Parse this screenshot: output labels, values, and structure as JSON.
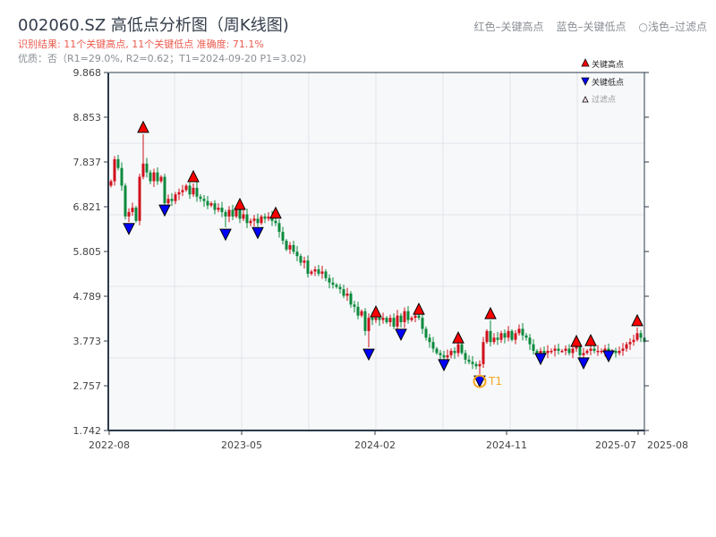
{
  "header": {
    "title": "002060.SZ 高低点分析图（周K线图)",
    "result_line": "识别结果: 11个关键高点, 11个关键低点   准确度: 71.1%",
    "quality_line": "优质：否（R1=29.0%, R2=0.62；T1=2024-09-20 P1=3.02)",
    "legend_red": "红色–关键高点",
    "legend_blue": "蓝色–关键低点",
    "legend_filtered": "○浅色–过滤点"
  },
  "colors": {
    "up": "#d0101c",
    "down": "#0b8a3c",
    "high_marker": "#ff0000",
    "low_marker": "#0000ff",
    "t1": "#f5a623",
    "grid": "#e1e4ea",
    "plot_bg": "#f7f8fa",
    "axis": "#2d3a4a"
  },
  "chart_data": {
    "type": "candlestick",
    "title": "002060.SZ 高低点分析图（周K线图)",
    "ylim": [
      1.742,
      9.868
    ],
    "y_ticks": [
      "1.742",
      "2.757",
      "3.773",
      "4.789",
      "5.805",
      "6.821",
      "7.837",
      "8.853",
      "9.868"
    ],
    "x_ticks": [
      {
        "label": "2022-08",
        "index": -0.5
      },
      {
        "label": "2023-05",
        "index": 36.5
      },
      {
        "label": "2024-02",
        "index": 73.75
      },
      {
        "label": "2024-11",
        "index": 110.5
      },
      {
        "label": "2025-07",
        "index": 147.25
      },
      {
        "label": "2025-08",
        "index": 149
      }
    ],
    "weekly_close": [
      7.4,
      7.9,
      7.7,
      7.3,
      6.6,
      6.7,
      6.8,
      6.5,
      7.5,
      7.8,
      7.6,
      7.4,
      7.6,
      7.4,
      7.5,
      6.9,
      7.0,
      6.95,
      7.1,
      7.15,
      7.2,
      7.3,
      7.1,
      7.25,
      7.05,
      7.0,
      6.95,
      6.85,
      6.9,
      6.75,
      6.8,
      6.7,
      6.6,
      6.75,
      6.6,
      6.8,
      6.55,
      6.65,
      6.45,
      6.5,
      6.55,
      6.45,
      6.6,
      6.55,
      6.6,
      6.5,
      6.45,
      6.25,
      6.05,
      5.85,
      5.95,
      5.8,
      5.7,
      5.55,
      5.6,
      5.3,
      5.35,
      5.4,
      5.3,
      5.35,
      5.2,
      5.1,
      5.05,
      5.0,
      4.95,
      4.8,
      4.85,
      4.6,
      4.55,
      4.35,
      4.45,
      4.0,
      4.3,
      4.25,
      4.3,
      4.25,
      4.3,
      4.2,
      4.3,
      4.1,
      4.35,
      4.2,
      4.45,
      4.25,
      4.3,
      4.35,
      4.3,
      4.05,
      3.85,
      3.75,
      3.6,
      3.5,
      3.45,
      3.4,
      3.45,
      3.55,
      3.5,
      3.7,
      3.5,
      3.35,
      3.3,
      3.25,
      3.2,
      3.25,
      3.75,
      4.0,
      3.75,
      3.85,
      3.8,
      3.95,
      3.85,
      4.0,
      3.8,
      3.95,
      4.05,
      3.9,
      3.85,
      3.7,
      3.55,
      3.5,
      3.55,
      3.5,
      3.55,
      3.55,
      3.6,
      3.55,
      3.55,
      3.6,
      3.5,
      3.6,
      3.65,
      3.45,
      3.5,
      3.55,
      3.6,
      3.55,
      3.55,
      3.55,
      3.6,
      3.55,
      3.55,
      3.5,
      3.55,
      3.6,
      3.7,
      3.75,
      3.8,
      3.95,
      3.85,
      3.75
    ],
    "key_highs": [
      {
        "index": 9,
        "value": 8.47
      },
      {
        "index": 23,
        "value": 7.35
      },
      {
        "index": 36,
        "value": 6.72
      },
      {
        "index": 46,
        "value": 6.52
      },
      {
        "index": 74,
        "value": 4.28
      },
      {
        "index": 86,
        "value": 4.34
      },
      {
        "index": 97,
        "value": 3.69
      },
      {
        "index": 106,
        "value": 4.24
      },
      {
        "index": 130,
        "value": 3.61
      },
      {
        "index": 134,
        "value": 3.63
      },
      {
        "index": 147,
        "value": 4.08
      }
    ],
    "key_lows": [
      {
        "index": 5,
        "value": 6.48
      },
      {
        "index": 15,
        "value": 6.9
      },
      {
        "index": 32,
        "value": 6.35
      },
      {
        "index": 41,
        "value": 6.39
      },
      {
        "index": 72,
        "value": 3.63
      },
      {
        "index": 81,
        "value": 4.08
      },
      {
        "index": 93,
        "value": 3.39
      },
      {
        "index": 103,
        "value": 3.02
      },
      {
        "index": 120,
        "value": 3.53
      },
      {
        "index": 132,
        "value": 3.43
      },
      {
        "index": 139,
        "value": 3.59
      }
    ],
    "t1": {
      "index": 103,
      "value": 3.02,
      "label": "T1"
    },
    "legend": {
      "placement": "top-right",
      "items": [
        "关键高点",
        "关键低点",
        "过滤点"
      ]
    }
  }
}
